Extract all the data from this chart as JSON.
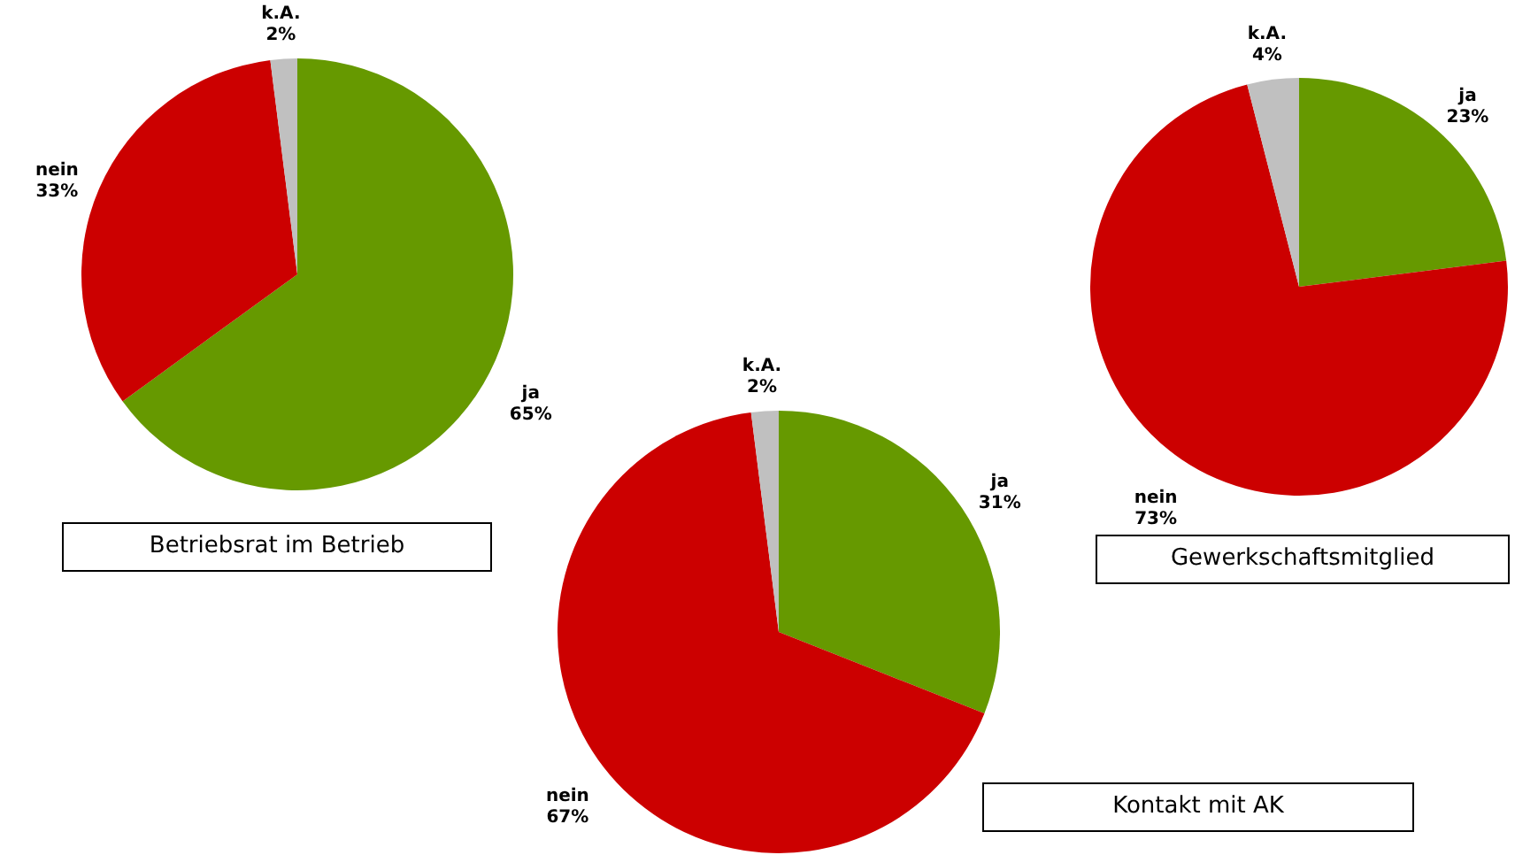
{
  "chart_data": [
    {
      "type": "pie",
      "title": "Betriebsrat im Betrieb",
      "categories": [
        "ja",
        "nein",
        "k.A."
      ],
      "values": [
        65,
        33,
        2
      ],
      "value_labels": [
        "65%",
        "33%",
        "2%"
      ],
      "colors": [
        "#669900",
        "#cc0000",
        "#c0c0c0"
      ]
    },
    {
      "type": "pie",
      "title": "Kontakt mit AK",
      "categories": [
        "ja",
        "nein",
        "k.A."
      ],
      "values": [
        31,
        67,
        2
      ],
      "value_labels": [
        "31%",
        "67%",
        "2%"
      ],
      "colors": [
        "#669900",
        "#cc0000",
        "#c0c0c0"
      ]
    },
    {
      "type": "pie",
      "title": "Gewerkschaftsmitglied",
      "categories": [
        "ja",
        "nein",
        "k.A."
      ],
      "values": [
        23,
        73,
        4
      ],
      "value_labels": [
        "23%",
        "73%",
        "4%"
      ],
      "colors": [
        "#669900",
        "#cc0000",
        "#c0c0c0"
      ]
    }
  ]
}
